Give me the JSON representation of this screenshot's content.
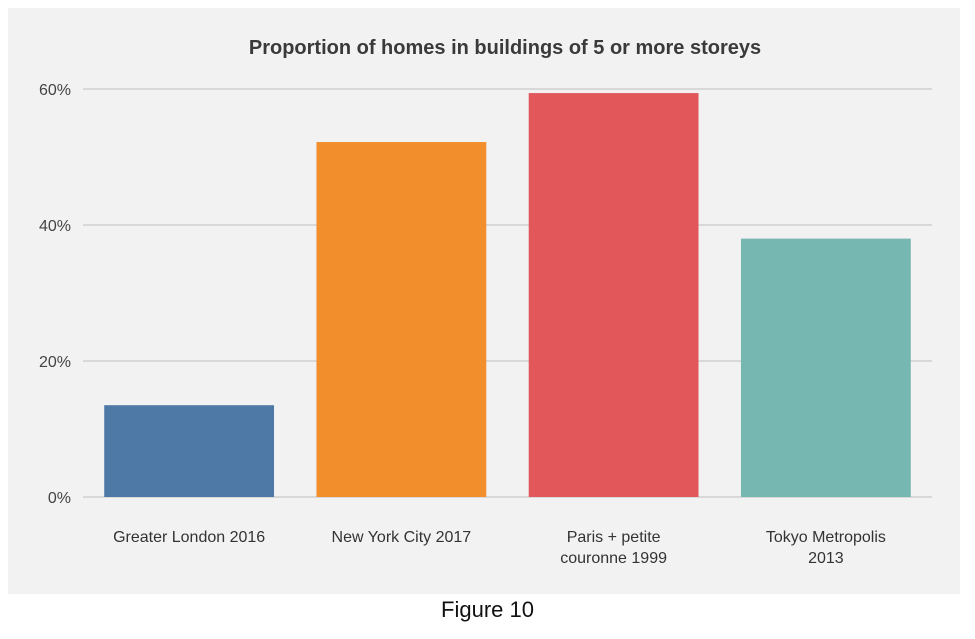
{
  "chart_data": {
    "type": "bar",
    "title": "Proportion of homes in buildings of 5 or more storeys",
    "categories": [
      [
        "Greater London 2016"
      ],
      [
        "New York City 2017"
      ],
      [
        "Paris + petite",
        "couronne 1999"
      ],
      [
        "Tokyo Metropolis",
        "2013"
      ]
    ],
    "values": [
      13.5,
      52.2,
      59.4,
      38.0
    ],
    "colors": [
      "#4e78a6",
      "#f28e2c",
      "#e1575a",
      "#76b7b2"
    ],
    "ylim": [
      0,
      60
    ],
    "yticks": [
      0,
      20,
      40,
      60
    ],
    "ytick_labels": [
      "0%",
      "20%",
      "40%",
      "60%"
    ],
    "xlabel": "",
    "ylabel": "",
    "grid": true,
    "legend": false
  },
  "caption": "Figure 10"
}
